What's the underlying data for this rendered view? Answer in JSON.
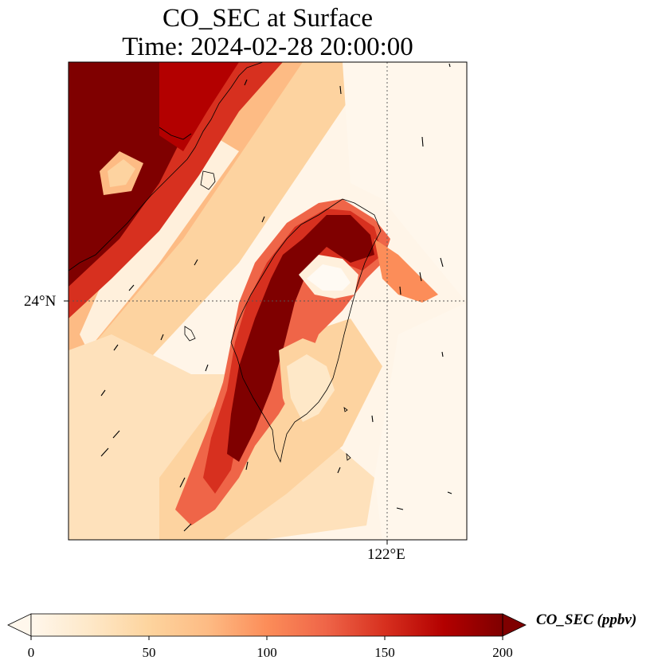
{
  "title": {
    "line1": "CO_SEC at Surface",
    "line2": "Time: 2024-02-28 20:00:00"
  },
  "map": {
    "gridlines": {
      "latitude_label": "24°N",
      "longitude_label": "122°E"
    },
    "field": {
      "variable": "CO_SEC",
      "units": "ppbv",
      "colormap": "OrRd",
      "plume_description_colors": {
        "low": "#fff7ec",
        "mid": "#fdbb84",
        "high": "#d7301f",
        "max": "#7f0000"
      }
    }
  },
  "colorbar": {
    "label": "CO_SEC (ppbv)",
    "ticks": [
      "0",
      "50",
      "100",
      "150",
      "200"
    ],
    "min": 0,
    "max": 200,
    "extend": "both"
  }
}
